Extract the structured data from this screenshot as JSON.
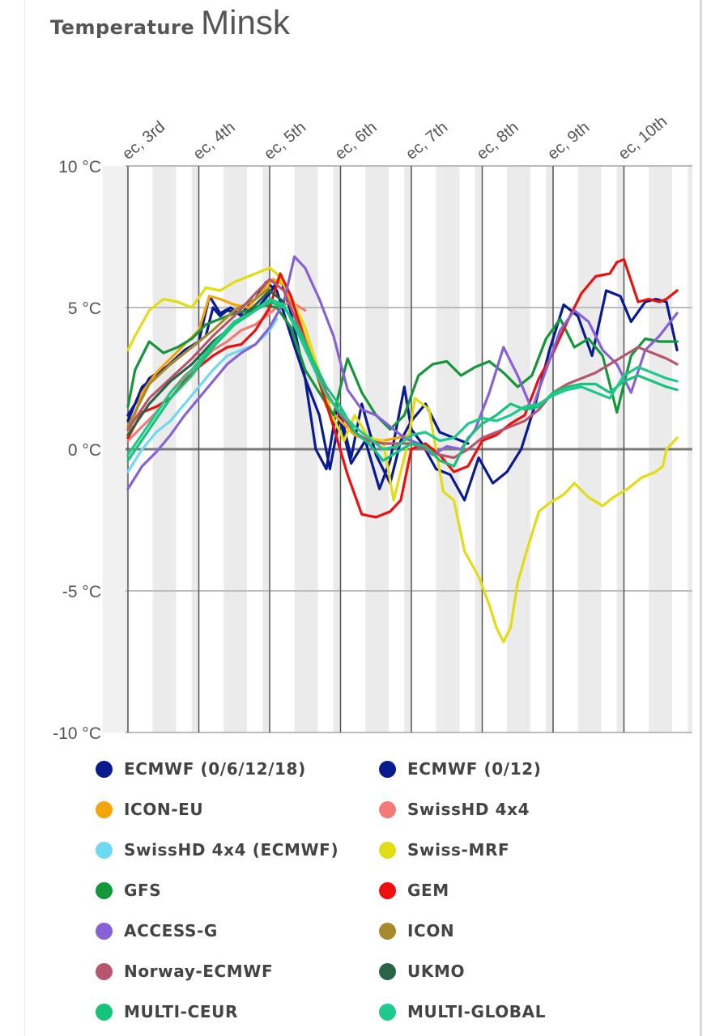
{
  "header": {
    "label": "Temperature",
    "city": "Minsk"
  },
  "chart_data": {
    "type": "line",
    "title": "Temperature Minsk",
    "ylim": [
      -10,
      10
    ],
    "yticks": [
      10,
      5,
      0,
      -5,
      -10
    ],
    "ytick_labels": [
      "10 °C",
      "5 °C",
      "0 °C",
      "-5 °C",
      "-10 °C"
    ],
    "xlim": [
      3,
      10.75
    ],
    "xticks": [
      3,
      4,
      5,
      6,
      7,
      8,
      9,
      10
    ],
    "xtick_labels": [
      "ec, 3rd",
      "ec, 4th",
      "ec, 5th",
      "ec, 6th",
      "ec, 7th",
      "ec, 8th",
      "ec, 9th",
      "ec, 10th"
    ],
    "series": [
      {
        "name": "ECMWF (0/6/12/18)",
        "color": "#0a1b8f",
        "x": [
          3.0,
          3.1,
          3.3,
          3.6,
          3.9,
          4.1,
          4.2,
          4.3,
          4.4,
          4.6,
          4.8,
          4.95,
          5.1,
          5.3,
          5.5,
          5.7,
          5.85,
          6.0,
          6.15,
          6.3,
          6.5,
          6.7,
          6.85,
          7.0,
          7.2,
          7.4,
          7.6,
          7.8
        ],
        "y": [
          1.2,
          1.6,
          2.5,
          3.0,
          3.6,
          4.0,
          5.0,
          4.7,
          4.9,
          4.8,
          5.3,
          5.9,
          5.6,
          4.0,
          2.5,
          1.2,
          -0.7,
          1.3,
          -0.3,
          1.6,
          -0.2,
          -1.2,
          0.3,
          1.0,
          1.6,
          0.6,
          0.4,
          0.2
        ]
      },
      {
        "name": "ECMWF (0/12)",
        "color": "#0a1b8f",
        "x": [
          3.0,
          3.2,
          3.5,
          3.8,
          4.0,
          4.15,
          4.3,
          4.45,
          4.6,
          4.8,
          5.0,
          5.15,
          5.3,
          5.5,
          5.65,
          5.8,
          5.95,
          6.15,
          6.35,
          6.55,
          6.7,
          6.9,
          7.0,
          7.15,
          7.35,
          7.55,
          7.75,
          7.95,
          8.15,
          8.35,
          8.55,
          8.75,
          8.95,
          9.15,
          9.35,
          9.55,
          9.75,
          9.95,
          10.1,
          10.3,
          10.45,
          10.6,
          10.75
        ],
        "y": [
          1.0,
          2.2,
          2.8,
          3.5,
          3.8,
          5.4,
          4.8,
          5.0,
          4.7,
          4.9,
          5.5,
          6.1,
          4.8,
          2.5,
          0.0,
          -0.7,
          1.5,
          -0.5,
          0.3,
          -1.4,
          -0.4,
          2.2,
          0.7,
          0.2,
          -0.7,
          -0.9,
          -1.8,
          -0.3,
          -1.2,
          -0.8,
          0.0,
          1.6,
          3.5,
          5.1,
          4.7,
          3.3,
          5.6,
          5.4,
          4.5,
          5.2,
          5.3,
          5.2,
          3.5
        ]
      },
      {
        "name": "ICON-EU",
        "color": "#f2a60c",
        "x": [
          3.0,
          3.2,
          3.4,
          3.6,
          3.8,
          4.0,
          4.15,
          4.3,
          4.5,
          4.7,
          4.9,
          5.05,
          5.2,
          5.4,
          5.6,
          5.8,
          6.0,
          6.2,
          6.4,
          6.6,
          6.8,
          7.0
        ],
        "y": [
          0.5,
          2.0,
          2.7,
          3.2,
          3.7,
          4.2,
          5.4,
          5.3,
          5.1,
          5.0,
          5.6,
          6.0,
          5.8,
          4.7,
          3.2,
          1.5,
          1.0,
          0.5,
          0.3,
          0.3,
          0.4,
          0.5
        ]
      },
      {
        "name": "SwissHD 4x4",
        "color": "#f47a78",
        "x": [
          3.0,
          3.2,
          3.4,
          3.6,
          3.8,
          4.0,
          4.2,
          4.4,
          4.6,
          4.8,
          5.0,
          5.1,
          5.3,
          5.5
        ],
        "y": [
          0.3,
          0.8,
          1.3,
          2.0,
          2.6,
          3.0,
          3.5,
          3.8,
          4.2,
          4.4,
          4.8,
          5.0,
          5.2,
          4.9
        ]
      },
      {
        "name": "SwissHD 4x4 (ECMWF)",
        "color": "#6fd8f2",
        "x": [
          3.0,
          3.2,
          3.4,
          3.6,
          3.8,
          4.0,
          4.2,
          4.4,
          4.6,
          4.8,
          5.0,
          5.1
        ],
        "y": [
          -0.8,
          0.0,
          0.6,
          1.0,
          1.6,
          2.2,
          2.8,
          3.3,
          3.5,
          3.7,
          4.2,
          4.6
        ]
      },
      {
        "name": "Swiss-MRF",
        "color": "#e2dc14",
        "x": [
          3.0,
          3.1,
          3.3,
          3.5,
          3.7,
          3.9,
          4.1,
          4.3,
          4.5,
          4.8,
          5.0,
          5.1,
          5.3,
          5.5,
          5.7,
          5.9,
          6.05,
          6.2,
          6.4,
          6.6,
          6.75,
          6.95,
          7.05,
          7.25,
          7.45,
          7.6,
          7.75,
          7.95,
          8.1,
          8.2,
          8.3,
          8.4,
          8.5,
          8.65,
          8.8,
          8.95,
          9.15,
          9.3,
          9.5,
          9.7,
          9.85,
          10.05,
          10.25,
          10.45,
          10.55,
          10.6,
          10.75
        ],
        "y": [
          3.5,
          4.0,
          4.9,
          5.3,
          5.2,
          5.0,
          5.7,
          5.6,
          5.9,
          6.2,
          6.4,
          6.2,
          5.4,
          4.3,
          2.7,
          1.1,
          0.3,
          1.2,
          0.4,
          0.3,
          -1.8,
          0.2,
          1.8,
          1.4,
          -1.5,
          -1.8,
          -3.6,
          -4.5,
          -5.5,
          -6.3,
          -6.8,
          -6.3,
          -4.7,
          -3.4,
          -2.2,
          -1.9,
          -1.6,
          -1.2,
          -1.7,
          -2.0,
          -1.7,
          -1.4,
          -1.0,
          -0.8,
          -0.6,
          0.0,
          0.4
        ]
      },
      {
        "name": "GFS",
        "color": "#14963b",
        "x": [
          3.0,
          3.1,
          3.3,
          3.5,
          3.7,
          3.9,
          4.1,
          4.3,
          4.5,
          4.7,
          4.9,
          5.1,
          5.3,
          5.5,
          5.7,
          5.9,
          6.1,
          6.3,
          6.5,
          6.7,
          6.9,
          7.1,
          7.3,
          7.5,
          7.7,
          7.9,
          8.1,
          8.3,
          8.5,
          8.7,
          8.9,
          9.1,
          9.3,
          9.5,
          9.7,
          9.9,
          10.1,
          10.3,
          10.5,
          10.75
        ],
        "y": [
          1.5,
          2.8,
          3.8,
          3.4,
          3.6,
          3.9,
          4.4,
          4.6,
          4.8,
          4.9,
          5.1,
          5.0,
          4.3,
          2.8,
          2.0,
          1.2,
          3.2,
          2.0,
          1.2,
          0.7,
          1.2,
          2.6,
          3.0,
          3.1,
          2.6,
          2.9,
          3.1,
          2.7,
          2.2,
          2.6,
          3.9,
          4.6,
          3.6,
          3.9,
          3.3,
          1.3,
          3.3,
          3.9,
          3.8,
          3.8
        ]
      },
      {
        "name": "GEM",
        "color": "#ee1010",
        "x": [
          3.0,
          3.2,
          3.4,
          3.6,
          3.8,
          4.0,
          4.2,
          4.4,
          4.6,
          4.8,
          5.0,
          5.15,
          5.3,
          5.5,
          5.7,
          5.9,
          6.1,
          6.3,
          6.5,
          6.7,
          6.85,
          7.0,
          7.2,
          7.4,
          7.6,
          7.8,
          8.0,
          8.2,
          8.4,
          8.6,
          8.8,
          9.0,
          9.2,
          9.4,
          9.6,
          9.8,
          9.9,
          10.0,
          10.2,
          10.35,
          10.5,
          10.6,
          10.75
        ],
        "y": [
          0.4,
          1.3,
          1.5,
          1.8,
          2.4,
          2.9,
          3.3,
          3.6,
          3.7,
          4.2,
          5.0,
          6.2,
          5.4,
          3.8,
          2.4,
          0.8,
          -0.9,
          -2.3,
          -2.4,
          -2.2,
          -1.8,
          0.0,
          0.2,
          -0.2,
          -0.8,
          -0.6,
          0.3,
          0.5,
          0.9,
          1.2,
          2.5,
          3.4,
          4.5,
          5.5,
          6.1,
          6.2,
          6.6,
          6.7,
          5.2,
          5.3,
          5.2,
          5.3,
          5.6
        ]
      },
      {
        "name": "ACCESS-G",
        "color": "#8762d4",
        "x": [
          3.0,
          3.2,
          3.4,
          3.6,
          3.8,
          4.0,
          4.2,
          4.4,
          4.6,
          4.8,
          5.0,
          5.2,
          5.35,
          5.5,
          5.7,
          5.9,
          6.1,
          6.3,
          6.5,
          6.7,
          6.9,
          7.1,
          7.3,
          7.5,
          7.7,
          7.9,
          8.1,
          8.3,
          8.5,
          8.7,
          8.9,
          9.1,
          9.3,
          9.5,
          9.7,
          9.9,
          10.1,
          10.3,
          10.5,
          10.75
        ],
        "y": [
          -1.4,
          -0.6,
          -0.1,
          0.5,
          1.2,
          1.8,
          2.4,
          3.0,
          3.4,
          3.7,
          4.3,
          5.2,
          6.8,
          6.4,
          5.3,
          4.0,
          2.1,
          1.4,
          1.2,
          0.8,
          0.4,
          0.2,
          -0.2,
          0.1,
          0.0,
          0.7,
          2.0,
          3.6,
          2.6,
          1.4,
          2.8,
          4.2,
          4.9,
          4.5,
          3.5,
          3.0,
          2.0,
          3.5,
          4.0,
          4.8
        ]
      },
      {
        "name": "ICON",
        "color": "#a88a2c",
        "x": [
          3.0,
          3.3,
          3.6,
          3.9,
          4.2,
          4.5,
          4.8,
          5.0
        ],
        "y": [
          0.8,
          2.3,
          3.0,
          3.6,
          4.2,
          4.9,
          5.3,
          5.7
        ]
      },
      {
        "name": "Norway-ECMWF",
        "color": "#b8556e",
        "x": [
          3.0,
          3.3,
          3.6,
          3.9,
          4.2,
          4.5,
          4.8,
          5.0,
          5.2,
          5.4,
          5.6,
          5.8,
          6.0,
          6.2,
          6.4,
          6.6,
          6.8,
          7.0,
          7.2,
          7.4,
          7.6,
          7.8,
          8.0,
          8.2,
          8.4,
          8.6,
          8.8,
          9.0,
          9.2,
          9.4,
          9.6,
          9.8,
          10.0,
          10.2,
          10.4,
          10.6,
          10.75
        ],
        "y": [
          0.7,
          1.8,
          2.5,
          3.2,
          4.0,
          4.7,
          5.5,
          6.0,
          5.6,
          4.4,
          3.2,
          2.0,
          1.2,
          0.6,
          0.3,
          0.2,
          0.2,
          0.2,
          0.0,
          -0.2,
          -0.3,
          0.0,
          0.4,
          0.6,
          0.8,
          1.0,
          1.4,
          2.0,
          2.3,
          2.5,
          2.7,
          3.0,
          3.3,
          3.6,
          3.4,
          3.2,
          3.0
        ]
      },
      {
        "name": "UKMO",
        "color": "#2a6446",
        "x": [
          3.0,
          3.3,
          3.6,
          3.9,
          4.2,
          4.5,
          4.8,
          5.0,
          5.2
        ],
        "y": [
          0.5,
          1.6,
          2.4,
          3.0,
          3.8,
          4.4,
          5.1,
          5.6,
          5.2
        ]
      },
      {
        "name": "MULTI-CEUR",
        "color": "#15c47a",
        "x": [
          3.0,
          3.3,
          3.6,
          3.9,
          4.2,
          4.5,
          4.8,
          5.0,
          5.2,
          5.4,
          5.6,
          5.8,
          6.0,
          6.2,
          6.4,
          6.6,
          6.8,
          7.0,
          7.2,
          7.4,
          7.6,
          7.8,
          8.0,
          8.2,
          8.4,
          8.6,
          8.8,
          9.0,
          9.2,
          9.4,
          9.6,
          9.8,
          10.0,
          10.2,
          10.4,
          10.6,
          10.75
        ],
        "y": [
          -0.4,
          0.7,
          1.8,
          2.6,
          3.6,
          4.4,
          4.9,
          5.2,
          5.0,
          4.3,
          3.2,
          2.2,
          1.5,
          0.6,
          0.2,
          -0.4,
          -0.1,
          0.2,
          0.1,
          -0.4,
          -0.6,
          0.4,
          0.9,
          1.2,
          1.6,
          1.4,
          1.5,
          2.0,
          2.2,
          2.3,
          2.3,
          2.0,
          2.4,
          2.6,
          2.4,
          2.2,
          2.1
        ]
      },
      {
        "name": "MULTI-GLOBAL",
        "color": "#1ec98b",
        "x": [
          3.0,
          3.3,
          3.6,
          3.9,
          4.2,
          4.5,
          4.8,
          5.0,
          5.2,
          5.4,
          5.6,
          5.8,
          6.0,
          6.2,
          6.4,
          6.6,
          6.8,
          7.0,
          7.2,
          7.4,
          7.6,
          7.8,
          8.0,
          8.2,
          8.4,
          8.6,
          8.8,
          9.0,
          9.2,
          9.4,
          9.6,
          9.8,
          10.0,
          10.2,
          10.4,
          10.6,
          10.75
        ],
        "y": [
          -0.2,
          0.9,
          2.0,
          2.8,
          3.7,
          4.5,
          4.9,
          5.3,
          5.1,
          4.1,
          3.0,
          1.9,
          1.3,
          0.8,
          0.4,
          0.0,
          0.1,
          0.5,
          0.6,
          0.3,
          0.4,
          0.9,
          1.1,
          1.0,
          1.2,
          1.5,
          1.6,
          1.9,
          2.1,
          2.2,
          2.0,
          1.8,
          2.6,
          2.9,
          2.7,
          2.5,
          2.4
        ]
      }
    ]
  }
}
